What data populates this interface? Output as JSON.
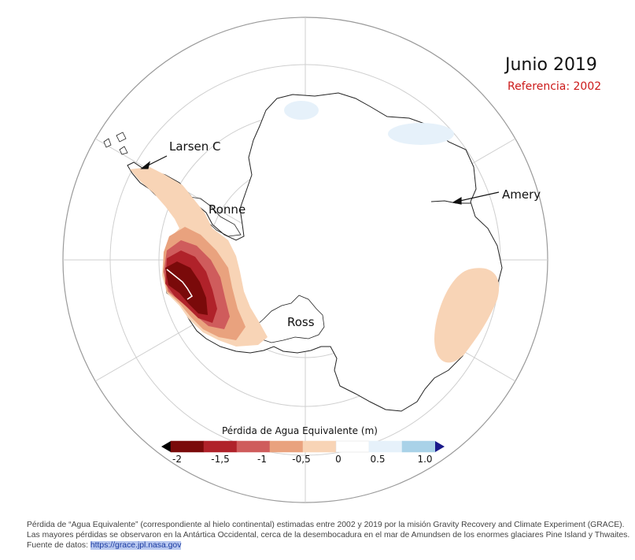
{
  "map": {
    "title": "Junio 2019",
    "reference": "Referencia: 2002",
    "labels": {
      "larsen": "Larsen C",
      "ronne": "Ronne",
      "amery": "Amery",
      "ross": "Ross"
    }
  },
  "legend": {
    "title": "Pérdida de Agua Equivalente (m)",
    "ticks": [
      "-2",
      "-1,5",
      "-1",
      "-0,5",
      "0",
      "0.5",
      "1.0"
    ],
    "colors": [
      "#7a0a0a",
      "#b0222a",
      "#cf5c5c",
      "#e9a27e",
      "#f8d4b6",
      "#ffffff",
      "#e6f1fa",
      "#a9d2e8",
      "#1a1a8a"
    ]
  },
  "caption": {
    "text": "Pérdida de “Agua Equivalente” (correspondiente al hielo continental) estimadas entre 2002 y 2019 por la misión Gravity Recovery and Climate Experiment (GRACE). Las mayores pérdidas se observaron en la Antártica Occidental, cerca de la desembocadura en el mar de Amundsen de los enormes glaciares Pine Island y Thwaites. Fuente de datos: ",
    "link": "https://grace.jpl.nasa.gov"
  }
}
